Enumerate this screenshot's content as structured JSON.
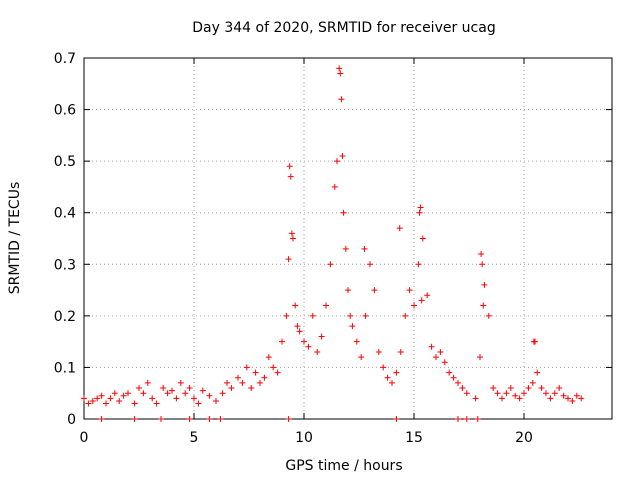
{
  "chart_data": {
    "type": "scatter",
    "title": "Day 344 of 2020, SRMTID for receiver ucag",
    "xlabel": "GPS time / hours",
    "ylabel": "SRMTID / TECUs",
    "xlim": [
      0,
      24
    ],
    "ylim": [
      0,
      0.7
    ],
    "xticks": [
      0,
      5,
      10,
      15,
      20
    ],
    "yticks": [
      0,
      0.1,
      0.2,
      0.3,
      0.4,
      0.5,
      0.6,
      0.7
    ],
    "grid": true,
    "marker": "+",
    "marker_color": "#ff0000",
    "series": [
      {
        "name": "SRMTID",
        "x": [
          0.0,
          0.2,
          0.4,
          0.6,
          0.8,
          1.0,
          1.2,
          1.4,
          1.6,
          1.8,
          2.0,
          2.3,
          2.5,
          2.7,
          2.9,
          3.1,
          3.3,
          3.6,
          3.8,
          4.0,
          4.2,
          4.4,
          4.6,
          4.8,
          5.0,
          5.2,
          5.4,
          5.7,
          6.0,
          6.3,
          6.5,
          6.7,
          7.0,
          7.2,
          7.4,
          7.6,
          7.8,
          8.0,
          8.2,
          8.4,
          8.6,
          8.8,
          9.0,
          9.2,
          9.3,
          9.4,
          9.5,
          9.6,
          9.7,
          9.8,
          10.0,
          10.2,
          10.4,
          10.6,
          10.8,
          11.0,
          11.2,
          11.4,
          11.5,
          11.6,
          11.7,
          11.8,
          11.9,
          12.0,
          12.1,
          12.2,
          12.4,
          12.6,
          12.8,
          13.0,
          13.2,
          13.4,
          13.6,
          13.8,
          14.0,
          14.2,
          14.4,
          14.6,
          14.8,
          15.0,
          15.2,
          15.3,
          15.4,
          15.6,
          15.8,
          16.0,
          16.2,
          16.4,
          16.6,
          16.8,
          17.0,
          17.2,
          17.4,
          17.8,
          18.0,
          18.1,
          18.2,
          18.4,
          18.6,
          18.8,
          19.0,
          19.2,
          19.4,
          19.6,
          19.8,
          20.0,
          20.2,
          20.4,
          20.5,
          20.6,
          20.8,
          21.0,
          21.2,
          21.4,
          21.6,
          21.8,
          22.0,
          22.2,
          22.4,
          22.6,
          9.35,
          9.45,
          11.65,
          11.75,
          12.75,
          14.35,
          15.25,
          15.35,
          18.05,
          18.15,
          20.45,
          0.8,
          2.3,
          3.5,
          4.8,
          5.7,
          6.2,
          9.3,
          14.2,
          17.0,
          17.4,
          17.9
        ],
        "y": [
          0.04,
          0.03,
          0.035,
          0.04,
          0.045,
          0.03,
          0.04,
          0.05,
          0.035,
          0.045,
          0.05,
          0.03,
          0.06,
          0.05,
          0.07,
          0.04,
          0.03,
          0.06,
          0.05,
          0.055,
          0.04,
          0.07,
          0.05,
          0.06,
          0.04,
          0.03,
          0.055,
          0.045,
          0.035,
          0.05,
          0.07,
          0.06,
          0.08,
          0.07,
          0.1,
          0.06,
          0.09,
          0.07,
          0.08,
          0.12,
          0.1,
          0.09,
          0.15,
          0.2,
          0.31,
          0.47,
          0.35,
          0.22,
          0.18,
          0.17,
          0.15,
          0.14,
          0.2,
          0.13,
          0.16,
          0.22,
          0.3,
          0.45,
          0.5,
          0.68,
          0.62,
          0.4,
          0.33,
          0.25,
          0.2,
          0.18,
          0.15,
          0.12,
          0.2,
          0.3,
          0.25,
          0.13,
          0.1,
          0.08,
          0.07,
          0.09,
          0.13,
          0.2,
          0.25,
          0.22,
          0.3,
          0.41,
          0.35,
          0.24,
          0.14,
          0.12,
          0.13,
          0.11,
          0.09,
          0.08,
          0.07,
          0.06,
          0.05,
          0.04,
          0.12,
          0.3,
          0.26,
          0.2,
          0.06,
          0.05,
          0.04,
          0.05,
          0.06,
          0.045,
          0.04,
          0.05,
          0.06,
          0.07,
          0.15,
          0.09,
          0.06,
          0.05,
          0.04,
          0.05,
          0.06,
          0.045,
          0.04,
          0.035,
          0.045,
          0.04,
          0.49,
          0.36,
          0.67,
          0.51,
          0.33,
          0.37,
          0.4,
          0.23,
          0.32,
          0.22,
          0.15,
          0.0,
          0.0,
          0.0,
          0.0,
          0.0,
          0.0,
          0.0,
          0.0,
          0.0,
          0.0,
          0.0
        ]
      }
    ]
  }
}
